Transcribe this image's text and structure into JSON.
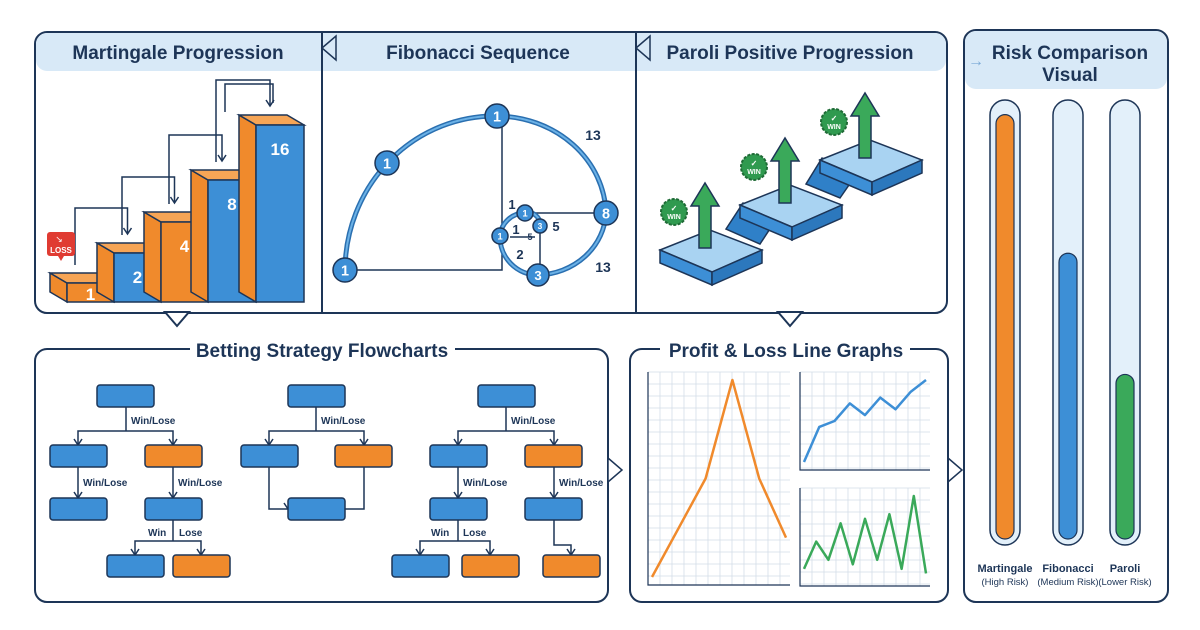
{
  "colors": {
    "navy": "#1d3557",
    "blue": "#3d8fd6",
    "orange": "#f08a2c",
    "green": "#3aa95a",
    "band": "#d8e9f7",
    "loss_red": "#e03b32"
  },
  "martingale": {
    "title": "Martingale Progression",
    "loss_badge": "LOSS",
    "steps": [
      {
        "value": "1",
        "color": "orange"
      },
      {
        "value": "2",
        "color": "blue"
      },
      {
        "value": "4",
        "color": "orange"
      },
      {
        "value": "8",
        "color": "blue"
      },
      {
        "value": "16",
        "color": "blue"
      }
    ]
  },
  "fibonacci": {
    "title": "Fibonacci Sequence",
    "nodes": [
      "1",
      "1",
      "1",
      "8",
      "3",
      "1",
      "1",
      "3"
    ],
    "labels": [
      "13",
      "13",
      "1",
      "1",
      "5",
      "2",
      "5"
    ]
  },
  "paroli": {
    "title": "Paroli Positive Progression",
    "badges": [
      "WIN",
      "WIN",
      "WIN"
    ],
    "badge_icon": "check-icon"
  },
  "risk": {
    "title_line1": "Risk Comparison",
    "title_line2": "Visual",
    "bars": [
      {
        "name": "Martingale",
        "level": "(High Risk)",
        "fill_percent": 98,
        "color": "orange"
      },
      {
        "name": "Fibonacci",
        "level": "(Medium Risk)",
        "fill_percent": 66,
        "color": "blue"
      },
      {
        "name": "Paroli",
        "level": "(Lower Risk)",
        "fill_percent": 38,
        "color": "green"
      }
    ]
  },
  "flowcharts": {
    "title": "Betting Strategy Flowcharts",
    "edge_labels": {
      "win_lose": "Win/Lose",
      "win": "Win",
      "lose": "Lose"
    }
  },
  "pnl": {
    "title": "Profit & Loss Line Graphs",
    "charts": [
      {
        "color": "orange",
        "values": [
          0,
          25,
          50,
          100,
          50,
          20
        ]
      },
      {
        "color": "blue",
        "values": [
          0,
          30,
          35,
          50,
          40,
          55,
          45,
          60,
          70
        ]
      },
      {
        "color": "green",
        "values": [
          10,
          40,
          20,
          60,
          15,
          65,
          20,
          70,
          10,
          90,
          5
        ]
      }
    ]
  }
}
